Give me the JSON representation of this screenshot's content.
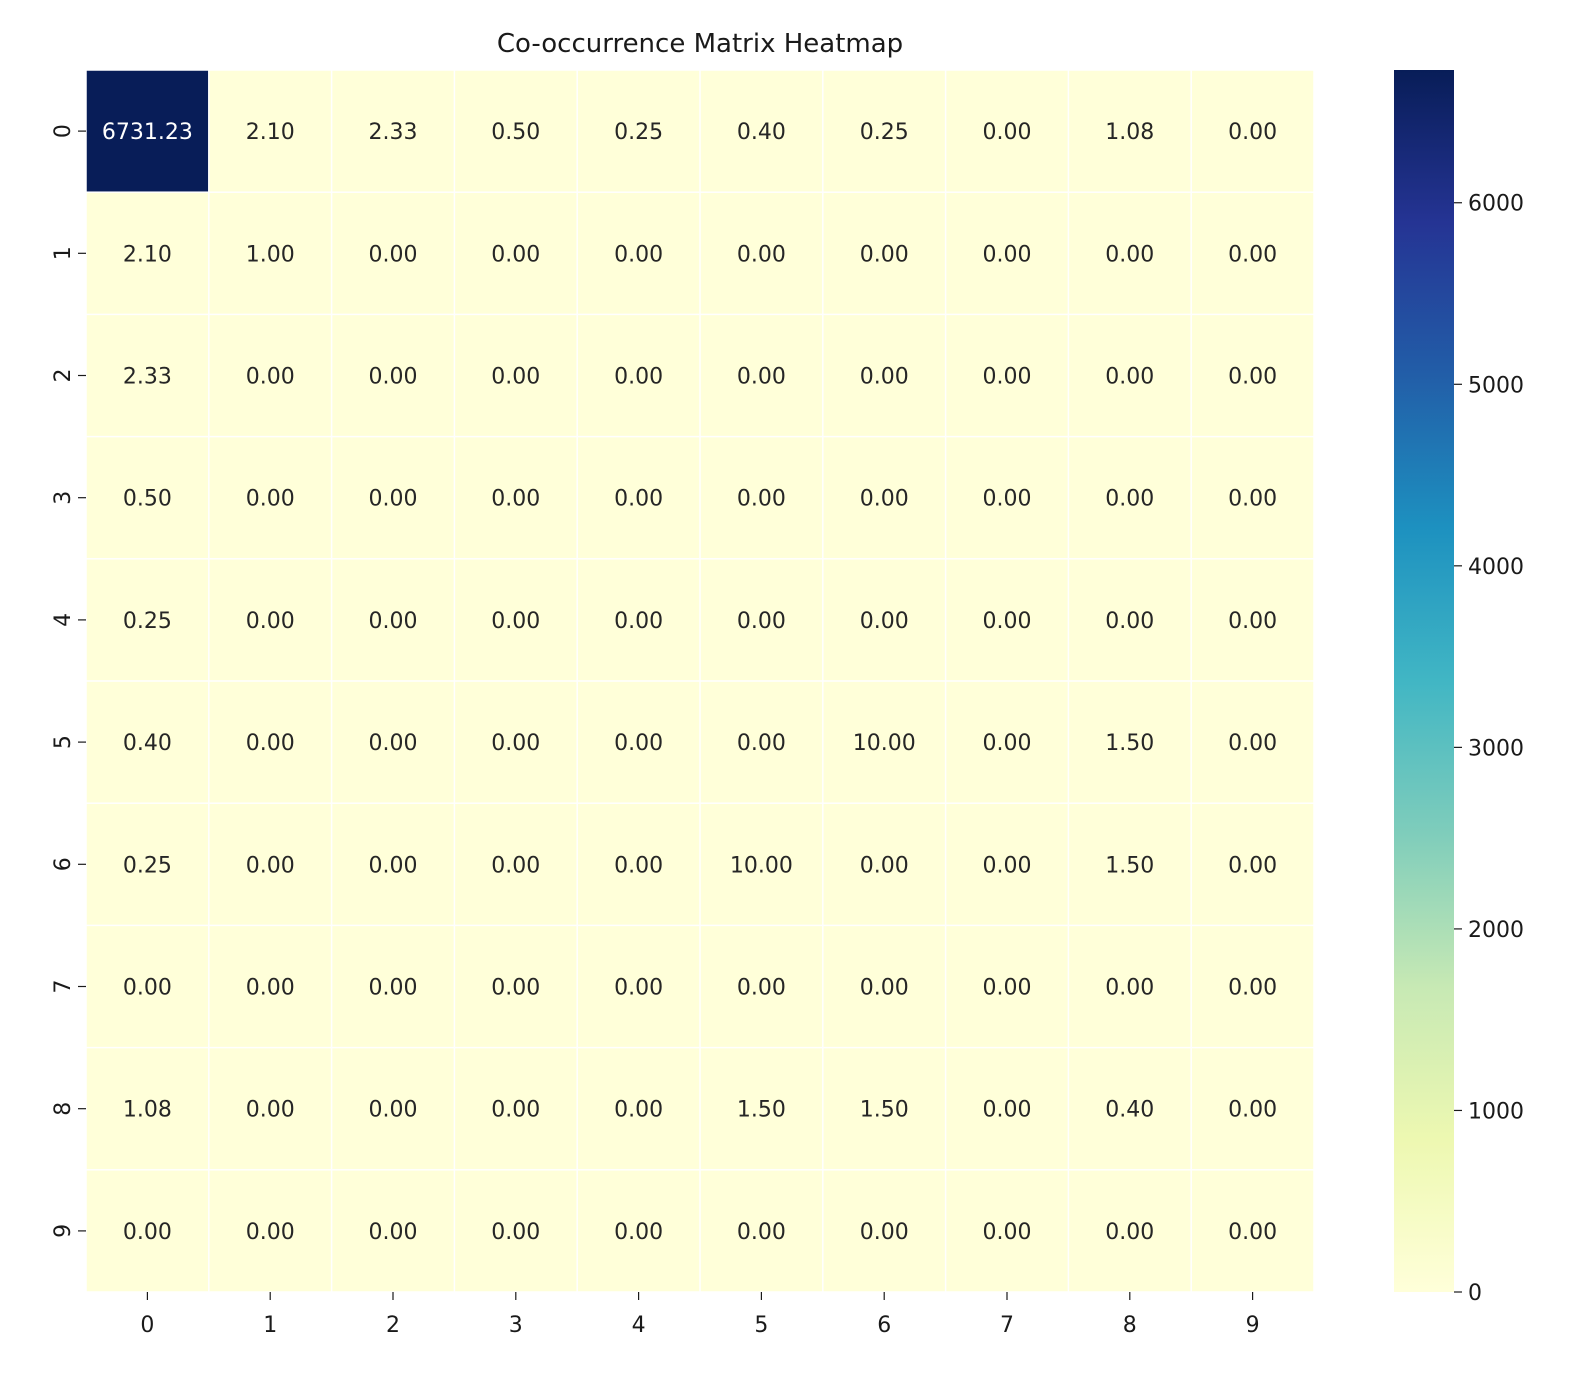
{
  "chart_data": {
    "type": "heatmap",
    "title": "Co-occurrence Matrix Heatmap",
    "xlabel": "",
    "ylabel": "",
    "x_categories": [
      "0",
      "1",
      "2",
      "3",
      "4",
      "5",
      "6",
      "7",
      "8",
      "9"
    ],
    "y_categories": [
      "0",
      "1",
      "2",
      "3",
      "4",
      "5",
      "6",
      "7",
      "8",
      "9"
    ],
    "values": [
      [
        6731.23,
        2.1,
        2.33,
        0.5,
        0.25,
        0.4,
        0.25,
        0.0,
        1.08,
        0.0
      ],
      [
        2.1,
        1.0,
        0.0,
        0.0,
        0.0,
        0.0,
        0.0,
        0.0,
        0.0,
        0.0
      ],
      [
        2.33,
        0.0,
        0.0,
        0.0,
        0.0,
        0.0,
        0.0,
        0.0,
        0.0,
        0.0
      ],
      [
        0.5,
        0.0,
        0.0,
        0.0,
        0.0,
        0.0,
        0.0,
        0.0,
        0.0,
        0.0
      ],
      [
        0.25,
        0.0,
        0.0,
        0.0,
        0.0,
        0.0,
        0.0,
        0.0,
        0.0,
        0.0
      ],
      [
        0.4,
        0.0,
        0.0,
        0.0,
        0.0,
        0.0,
        10.0,
        0.0,
        1.5,
        0.0
      ],
      [
        0.25,
        0.0,
        0.0,
        0.0,
        0.0,
        10.0,
        0.0,
        0.0,
        1.5,
        0.0
      ],
      [
        0.0,
        0.0,
        0.0,
        0.0,
        0.0,
        0.0,
        0.0,
        0.0,
        0.0,
        0.0
      ],
      [
        1.08,
        0.0,
        0.0,
        0.0,
        0.0,
        1.5,
        1.5,
        0.0,
        0.4,
        0.0
      ],
      [
        0.0,
        0.0,
        0.0,
        0.0,
        0.0,
        0.0,
        0.0,
        0.0,
        0.0,
        0.0
      ]
    ],
    "value_format": "0.00",
    "colorbar": {
      "colormap": "YlGnBu",
      "range": [
        0,
        6731.23
      ],
      "ticks": [
        0,
        1000,
        2000,
        3000,
        4000,
        5000,
        6000
      ],
      "tick_labels": [
        "0",
        "1000",
        "2000",
        "3000",
        "4000",
        "5000",
        "6000"
      ]
    },
    "cell_separator_color": "#ffffff",
    "grid": false,
    "legend": "colorbar-right"
  }
}
